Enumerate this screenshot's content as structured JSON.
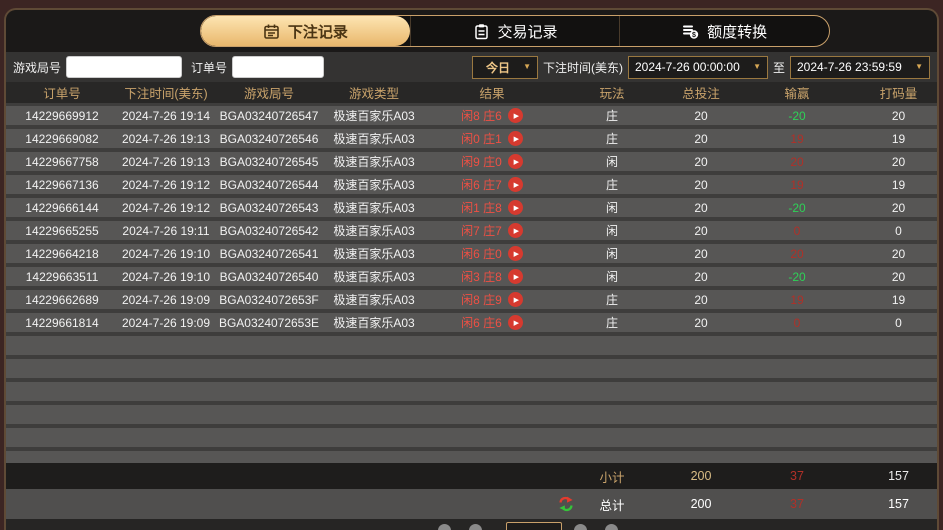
{
  "tabs": [
    {
      "label": "下注记录",
      "icon": "calendar",
      "active": true
    },
    {
      "label": "交易记录",
      "icon": "clipboard",
      "active": false
    },
    {
      "label": "额度转换",
      "icon": "coins",
      "active": false
    }
  ],
  "filters": {
    "game_round_label": "游戏局号",
    "order_no_label": "订单号",
    "range_selected": "今日",
    "bet_time_label": "下注时间(美东)",
    "start_time": "2024-7-26 00:00:00",
    "to_label": "至",
    "end_time": "2024-7-26 23:59:59"
  },
  "table": {
    "headers": [
      "订单号",
      "下注时间(美东)",
      "游戏局号",
      "游戏类型",
      "结果",
      "玩法",
      "总投注",
      "输赢",
      "打码量"
    ],
    "rows": [
      {
        "order": "14229669912",
        "time": "2024-7-26 19:14",
        "round": "BGA03240726547",
        "game": "极速百家乐A03",
        "result": "闲8 庄6",
        "play": "庄",
        "bet": "20",
        "winloss": "-20",
        "turnover": "20"
      },
      {
        "order": "14229669082",
        "time": "2024-7-26 19:13",
        "round": "BGA03240726546",
        "game": "极速百家乐A03",
        "result": "闲0 庄1",
        "play": "庄",
        "bet": "20",
        "winloss": "19",
        "turnover": "19"
      },
      {
        "order": "14229667758",
        "time": "2024-7-26 19:13",
        "round": "BGA03240726545",
        "game": "极速百家乐A03",
        "result": "闲9 庄0",
        "play": "闲",
        "bet": "20",
        "winloss": "20",
        "turnover": "20"
      },
      {
        "order": "14229667136",
        "time": "2024-7-26 19:12",
        "round": "BGA03240726544",
        "game": "极速百家乐A03",
        "result": "闲6 庄7",
        "play": "庄",
        "bet": "20",
        "winloss": "19",
        "turnover": "19"
      },
      {
        "order": "14229666144",
        "time": "2024-7-26 19:12",
        "round": "BGA03240726543",
        "game": "极速百家乐A03",
        "result": "闲1 庄8",
        "play": "闲",
        "bet": "20",
        "winloss": "-20",
        "turnover": "20"
      },
      {
        "order": "14229665255",
        "time": "2024-7-26 19:11",
        "round": "BGA03240726542",
        "game": "极速百家乐A03",
        "result": "闲7 庄7",
        "play": "闲",
        "bet": "20",
        "winloss": "0",
        "turnover": "0"
      },
      {
        "order": "14229664218",
        "time": "2024-7-26 19:10",
        "round": "BGA03240726541",
        "game": "极速百家乐A03",
        "result": "闲6 庄0",
        "play": "闲",
        "bet": "20",
        "winloss": "20",
        "turnover": "20"
      },
      {
        "order": "14229663511",
        "time": "2024-7-26 19:10",
        "round": "BGA03240726540",
        "game": "极速百家乐A03",
        "result": "闲3 庄8",
        "play": "闲",
        "bet": "20",
        "winloss": "-20",
        "turnover": "20"
      },
      {
        "order": "14229662689",
        "time": "2024-7-26 19:09",
        "round": "BGA0324072653F",
        "game": "极速百家乐A03",
        "result": "闲8 庄9",
        "play": "庄",
        "bet": "20",
        "winloss": "19",
        "turnover": "19"
      },
      {
        "order": "14229661814",
        "time": "2024-7-26 19:09",
        "round": "BGA0324072653E",
        "game": "极速百家乐A03",
        "result": "闲6 庄6",
        "play": "庄",
        "bet": "20",
        "winloss": "0",
        "turnover": "0"
      }
    ],
    "empty_rows": 6,
    "subtotal": {
      "label": "小计",
      "bet": "200",
      "winloss": "37",
      "turnover": "157"
    },
    "total": {
      "label": "总计",
      "bet": "200",
      "winloss": "37",
      "turnover": "157"
    }
  },
  "colors": {
    "accent_gold": "#c9a06a",
    "active_tab_gradient_top": "#fde5b2",
    "active_tab_gradient_bottom": "#e9b76c",
    "win_red": "#b03028",
    "loss_green": "#2ed157",
    "result_red": "#ef5044",
    "play_button_red": "#d63a2f",
    "row_gray": "#575655",
    "backdrop_maroon": "#3c2523"
  }
}
